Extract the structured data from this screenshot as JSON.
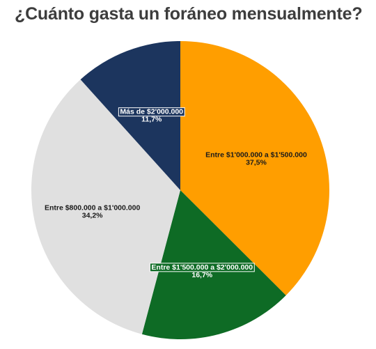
{
  "chart_data": {
    "type": "pie",
    "title": "¿Cuánto gasta un foráneo mensualmente?",
    "slices": [
      {
        "label": "Entre $1'000.000 a $1'500.000",
        "value": 37.5,
        "value_label": "37,5%",
        "color": "#ff9e00",
        "text_color": "#1a1a1a",
        "boxed": false
      },
      {
        "label": "Entre $1'500.000 a $2'000.000",
        "value": 16.7,
        "value_label": "16,7%",
        "color": "#0e6b25",
        "text_color": "#ffffff",
        "boxed": true
      },
      {
        "label": "Entre $800.000 a $1'000.000",
        "value": 34.2,
        "value_label": "34,2%",
        "color": "#e0e0e0",
        "text_color": "#1a1a1a",
        "boxed": false
      },
      {
        "label": "Más de $2'000.000",
        "value": 11.7,
        "value_label": "11,7%",
        "color": "#1c355e",
        "text_color": "#ffffff",
        "boxed": true
      }
    ],
    "start_angle": "12 o'clock",
    "direction": "clockwise",
    "legend": "none"
  }
}
